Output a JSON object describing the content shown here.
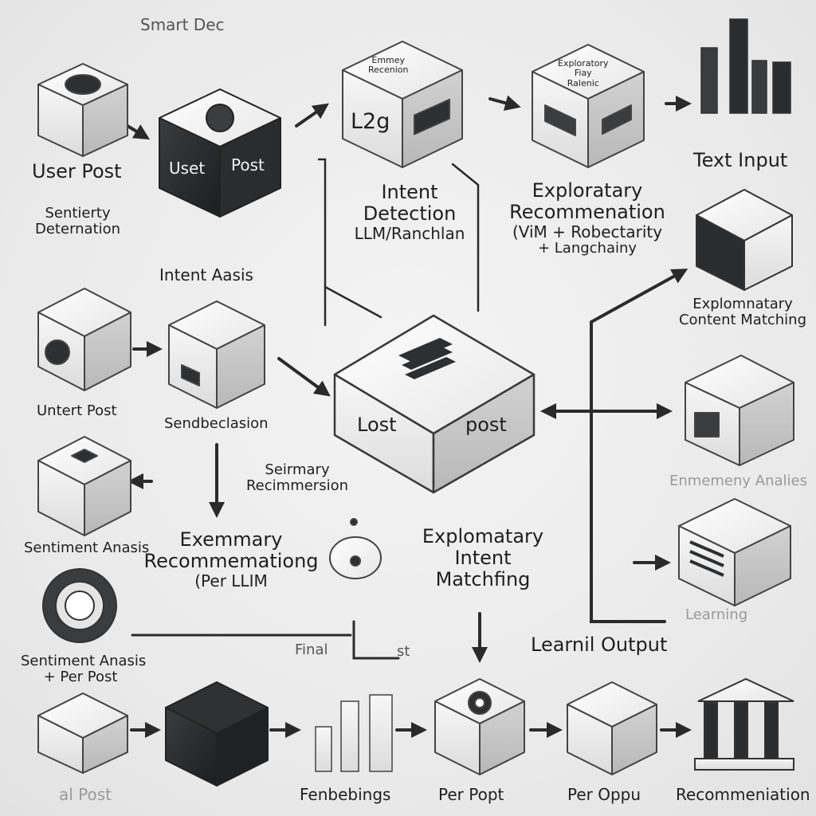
{
  "diagram": {
    "header_text": "Smart Dec",
    "top_row": {
      "user_post_label": "User Post",
      "user_post_sub": [
        "Sentierty",
        "Deternation"
      ],
      "dark_cube_text": [
        "Uset",
        "Post"
      ],
      "intent_cube_top": [
        "Emmey",
        "Recenion"
      ],
      "intent_cube_front": "L2g",
      "intent_detection": [
        "Intent",
        "Detection",
        "LLM/Ranchlan"
      ],
      "exploratory_recommendation": [
        "Exploratary",
        "Recommenation",
        "(ViM + Robectarity",
        "+ Langchainy"
      ],
      "exploratory_cube_top": [
        "Exploratory",
        "Fiay",
        "Ralenic"
      ]
    },
    "right_column": {
      "text_input": "Text Input",
      "content_matching": [
        "Explomnatary",
        "Content Matching"
      ],
      "sentiment_analysis_faint": "Enmemeny Analies",
      "learning_faint": "Learning",
      "learning_output": "Learnil Output"
    },
    "center": {
      "hub_text": [
        "Lost",
        "post"
      ],
      "intent_basis": "Intent Aasis",
      "sentiment_classification": "Sendbeclasion",
      "summary_recommendation": [
        "Seirmary",
        "Recimmersion"
      ],
      "summary_recommendation_big": [
        "Exemmary",
        "Recommemationg",
        "(Per LLIM"
      ],
      "exploratory_intent_matching": [
        "Explomatary",
        "Intent",
        "Matchfing"
      ],
      "final_text": [
        "Final",
        "st"
      ]
    },
    "left_column": {
      "intent_post": "Untert Post",
      "sentiment_analysis": "Sentiment Anasis",
      "sentiment_per_post": [
        "Sentiment Anasis",
        "+ Per Post"
      ]
    },
    "bottom_row": {
      "labels": [
        "al Post",
        "Fenbebings",
        "Per Popt",
        "Per Oppu",
        "Recommeniation"
      ]
    }
  }
}
